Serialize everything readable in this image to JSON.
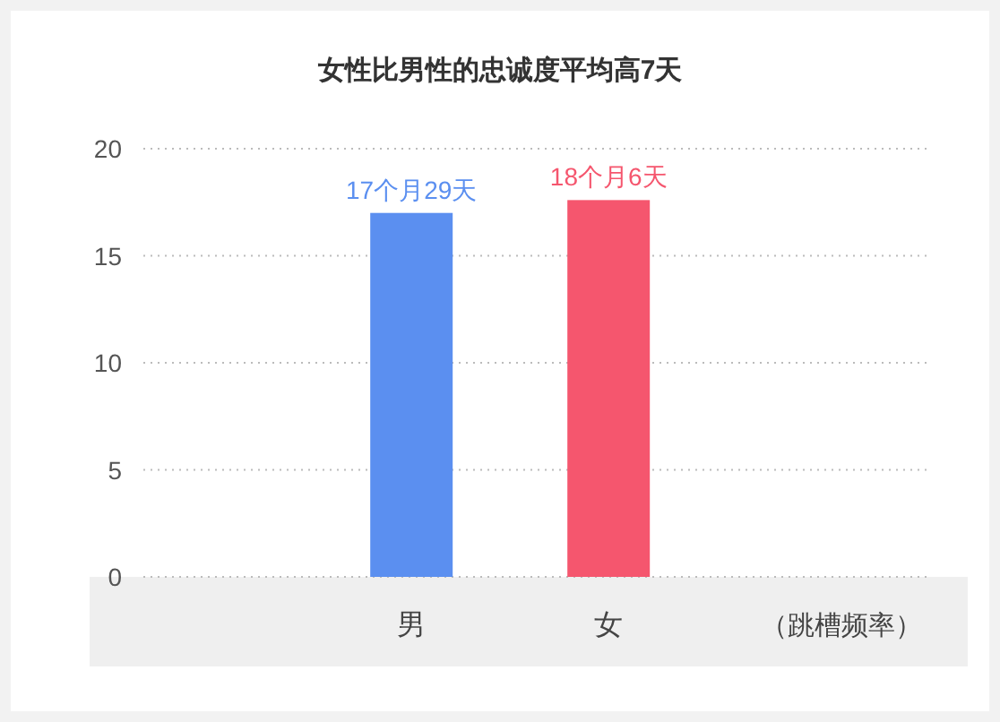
{
  "chart_data": {
    "type": "bar",
    "title": "女性比男性的忠诚度平均高7天",
    "xlabel": "（跳槽频率）",
    "categories": [
      "男",
      "女"
    ],
    "values": [
      17.0,
      17.6
    ],
    "colors": [
      "#5b8ff0",
      "#f5566e"
    ],
    "value_labels": [
      "17个月29天",
      "18个月6天"
    ],
    "ylim": [
      0,
      20
    ],
    "yticks": [
      0,
      5,
      10,
      15,
      20
    ],
    "grid": "y"
  }
}
